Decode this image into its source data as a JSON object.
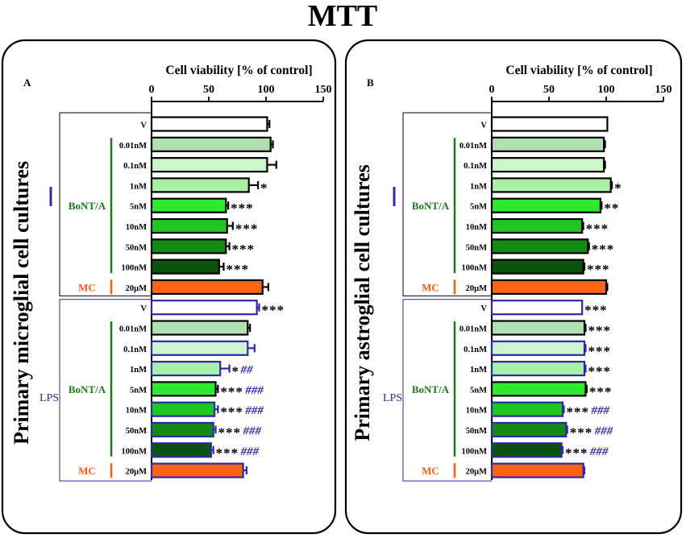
{
  "figure": {
    "title": "MTT"
  },
  "colors": {
    "outline_black": "#000000",
    "outline_blue": "#2a2aa8",
    "group_green": "#1a7a1a",
    "mc_orange": "#ff5a14",
    "sig_blue": "#2a2aa8"
  },
  "chart_data": [
    {
      "type": "bar",
      "orientation": "horizontal",
      "panel_label": "A",
      "title": "Cell viability [% of control]",
      "ylabel": "Primary microglial cell cultures",
      "xlim": [
        0,
        150
      ],
      "xticks": [
        0,
        50,
        100,
        150
      ],
      "groups": [
        {
          "label": "",
          "bracket_color": "#2a2aa8",
          "sublabel": "BoNT/A",
          "mc_label": "MC"
        },
        {
          "label": "LPS",
          "bracket_color": "#2a2aa8",
          "sublabel": "BoNT/A",
          "mc_label": "MC"
        }
      ],
      "categories": [
        "V",
        "0.01nM",
        "0.1nM",
        "1nM",
        "5nM",
        "10nM",
        "50nM",
        "100nM",
        "20μM",
        "V",
        "0.01nM",
        "0.1nM",
        "1nM",
        "5nM",
        "10nM",
        "50nM",
        "100nM",
        "20μM"
      ],
      "values": [
        101,
        104,
        101,
        85,
        65,
        66,
        65,
        59,
        97,
        92,
        84,
        84,
        60,
        56,
        55,
        54,
        52,
        80
      ],
      "errors": [
        2,
        2,
        8,
        8,
        2,
        5,
        3,
        4,
        5,
        2,
        2,
        6,
        8,
        2,
        3,
        2,
        2,
        3
      ],
      "fills": [
        "#ffffff",
        "#b2dfb2",
        "#ccf5cc",
        "#a8f0a8",
        "#2eea2e",
        "#1fc61f",
        "#138a13",
        "#0d520d",
        "#ff6414",
        "#ffffff",
        "#b2dfb2",
        "#ccf5cc",
        "#a8f0a8",
        "#2eea2e",
        "#1fc61f",
        "#138a13",
        "#0d520d",
        "#ff6414"
      ],
      "strokes": [
        "#000000",
        "#000000",
        "#000000",
        "#000000",
        "#000000",
        "#000000",
        "#000000",
        "#000000",
        "#000000",
        "#2a2aa8",
        "#000000",
        "#2a2aa8",
        "#2a2aa8",
        "#000000",
        "#2a2aa8",
        "#2a2aa8",
        "#2a2aa8",
        "#2a2aa8"
      ],
      "sig_black": [
        "",
        "",
        "",
        "*",
        "***",
        "***",
        "***",
        "***",
        "",
        "***",
        "",
        "",
        "*",
        "***",
        "***",
        "***",
        "***",
        ""
      ],
      "sig_blue": [
        "",
        "",
        "",
        "",
        "",
        "",
        "",
        "",
        "",
        "",
        "",
        "",
        "##",
        "###",
        "###",
        "###",
        "###",
        ""
      ]
    },
    {
      "type": "bar",
      "orientation": "horizontal",
      "panel_label": "B",
      "title": "Cell viability [% of control]",
      "ylabel": "Primary astroglial cell cultures",
      "xlim": [
        0,
        150
      ],
      "xticks": [
        0,
        50,
        100,
        150
      ],
      "groups": [
        {
          "label": "",
          "bracket_color": "#2a2aa8",
          "sublabel": "BoNT/A",
          "mc_label": "MC"
        },
        {
          "label": "LPS",
          "bracket_color": "#2a2aa8",
          "sublabel": "BoNT/A",
          "mc_label": "MC"
        }
      ],
      "categories": [
        "V",
        "0.01nM",
        "0.1nM",
        "1nM",
        "5nM",
        "10nM",
        "50nM",
        "100nM",
        "20μM",
        "V",
        "0.01nM",
        "0.1nM",
        "1nM",
        "5nM",
        "10nM",
        "50nM",
        "100nM",
        "20μM"
      ],
      "values": [
        101,
        98,
        98,
        104,
        95,
        79,
        84,
        80,
        100,
        79,
        81,
        81,
        81,
        82,
        62,
        65,
        61,
        80
      ],
      "errors": [
        0,
        1,
        1,
        1,
        1,
        1,
        1,
        1,
        1,
        0,
        1,
        1,
        1,
        1,
        1,
        1,
        1,
        1
      ],
      "fills": [
        "#ffffff",
        "#b2dfb2",
        "#ccf5cc",
        "#a8f0a8",
        "#2eea2e",
        "#1fc61f",
        "#138a13",
        "#0d520d",
        "#ff6414",
        "#ffffff",
        "#b2dfb2",
        "#ccf5cc",
        "#a8f0a8",
        "#2eea2e",
        "#1fc61f",
        "#138a13",
        "#0d520d",
        "#ff6414"
      ],
      "strokes": [
        "#000000",
        "#000000",
        "#000000",
        "#000000",
        "#000000",
        "#000000",
        "#000000",
        "#000000",
        "#000000",
        "#2a2aa8",
        "#000000",
        "#2a2aa8",
        "#2a2aa8",
        "#000000",
        "#2a2aa8",
        "#2a2aa8",
        "#2a2aa8",
        "#2a2aa8"
      ],
      "sig_black": [
        "",
        "",
        "",
        "*",
        "**",
        "***",
        "***",
        "***",
        "",
        "***",
        "***",
        "***",
        "***",
        "***",
        "***",
        "***",
        "***",
        ""
      ],
      "sig_blue": [
        "",
        "",
        "",
        "",
        "",
        "",
        "",
        "",
        "",
        "",
        "",
        "",
        "",
        "",
        "###",
        "###",
        "###",
        ""
      ]
    }
  ]
}
